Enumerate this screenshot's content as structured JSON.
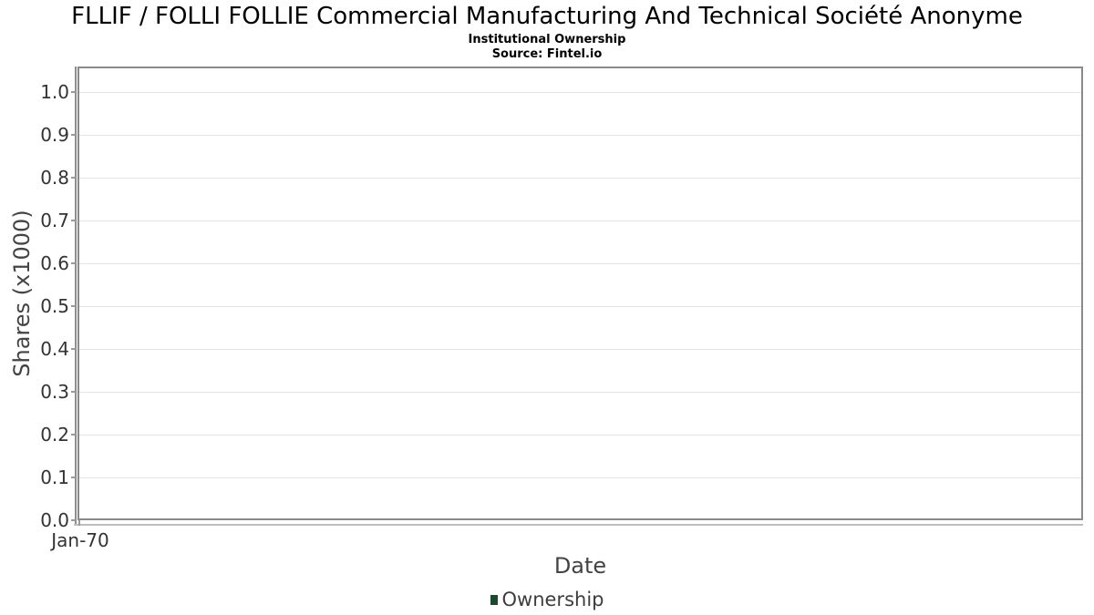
{
  "chart_data": {
    "type": "line",
    "title": "FLLIF / FOLLI FOLLIE Commercial Manufacturing And Technical Société Anonyme",
    "subtitle": "Institutional Ownership",
    "source": "Source: Fintel.io",
    "xlabel": "Date",
    "ylabel": "Shares (x1000)",
    "x_tick_labels": [
      "Jan-70"
    ],
    "y_tick_labels": [
      "1.0",
      "0.9",
      "0.8",
      "0.7",
      "0.6",
      "0.5",
      "0.4",
      "0.3",
      "0.2",
      "0.1",
      "0.0"
    ],
    "ylim": [
      0.0,
      1.06
    ],
    "grid": true,
    "legend": {
      "position": "bottom-center",
      "entries": [
        {
          "label": "Ownership",
          "color": "#1d4a2e"
        }
      ]
    },
    "series": [
      {
        "name": "Ownership",
        "x": [],
        "values": []
      }
    ]
  },
  "colors": {
    "background": "#ffffff",
    "title_text": "#000000",
    "plot_border": "#8a8a8a",
    "gridline": "#e3e3e3",
    "axis_line": "#8f8f8f",
    "x_axis_line": "#bdbdbd",
    "tick_mark": "#999999",
    "tick_label": "#333333",
    "axis_title": "#444444",
    "legend_marker": "#1d4a2e",
    "legend_text": "#3d3d3d"
  }
}
